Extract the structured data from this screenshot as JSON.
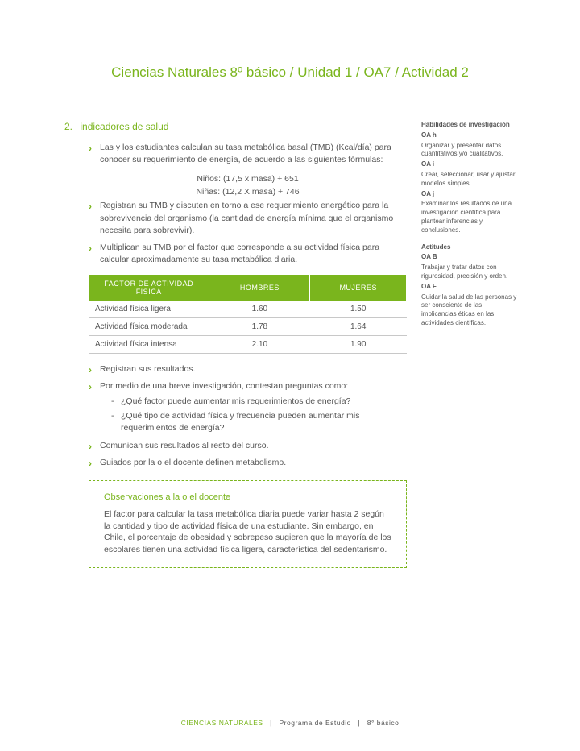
{
  "page_title": "Ciencias Naturales 8º básico / Unidad 1 / OA7 / Actividad 2",
  "section": {
    "number": "2.",
    "title": "indicadores de salud"
  },
  "bullets_top": [
    "Las y los estudiantes calculan su tasa metabólica basal (TMB) (Kcal/día) para conocer su requerimiento de energía, de acuerdo a las siguientes fórmulas:"
  ],
  "formulas": {
    "ninos": "Niños: (17,5 x masa) + 651",
    "ninas": "Niñas: (12,2 X masa) + 746"
  },
  "bullets_mid": [
    "Registran su TMB y discuten en torno a ese requerimiento energético para la sobrevivencia del organismo (la cantidad de energía mínima que el organismo necesita para sobrevivir).",
    "Multiplican su TMB por el factor que corresponde a su actividad física para calcular aproximadamente su tasa metabólica diaria."
  ],
  "table": {
    "headers": [
      "FACTOR DE ACTIVIDAD FÍSICA",
      "HOMBRES",
      "MUJERES"
    ],
    "rows": [
      [
        "Actividad física ligera",
        "1.60",
        "1.50"
      ],
      [
        "Actividad física moderada",
        "1.78",
        "1.64"
      ],
      [
        "Actividad física intensa",
        "2.10",
        "1.90"
      ]
    ]
  },
  "bullets_bottom": [
    "Registran sus resultados.",
    "Por medio de una breve investigación, contestan preguntas como:"
  ],
  "sub_questions": [
    "¿Qué factor puede aumentar mis requerimientos de energía?",
    "¿Qué tipo de actividad física y frecuencia pueden aumentar mis requerimientos de energía?"
  ],
  "bullets_end": [
    "Comunican sus resultados al resto del curso.",
    "Guiados por la o el docente definen metabolismo."
  ],
  "obs": {
    "title": "Observaciones a la o el docente",
    "text": "El factor para calcular la tasa metabólica diaria puede variar hasta 2 según la cantidad y tipo de actividad física de una estudiante. Sin embargo, en Chile, el porcentaje de obesidad y sobrepeso sugieren que la mayoría de los escolares tienen una actividad física ligera, característica del sedentarismo."
  },
  "sidebar": {
    "hab_title": "Habilidades de investigación",
    "oah": "OA h",
    "oah_text": "Organizar y presentar datos cuantitativos y/o cualitativos.",
    "oai": "OA i",
    "oai_text": "Crear, seleccionar, usar y ajustar modelos simples",
    "oaj": "OA j",
    "oaj_text": "Examinar los resultados de una investigación científica para plantear inferencias y conclusiones.",
    "act_title": "Actitudes",
    "oab": "OA B",
    "oab_text": "Trabajar y tratar datos con rigurosidad, precisión y orden.",
    "oaf": "OA F",
    "oaf_text": "Cuidar la salud de las personas y ser consciente de las implicancias éticas en las actividades científicas."
  },
  "footer": {
    "subject": "CIENCIAS NATURALES",
    "sep1": "|",
    "program": "Programa de Estudio",
    "sep2": "|",
    "grade": "8° básico"
  },
  "colors": {
    "accent": "#7ab51d",
    "text": "#555555",
    "grid": "#c8c8c8",
    "white": "#ffffff"
  }
}
